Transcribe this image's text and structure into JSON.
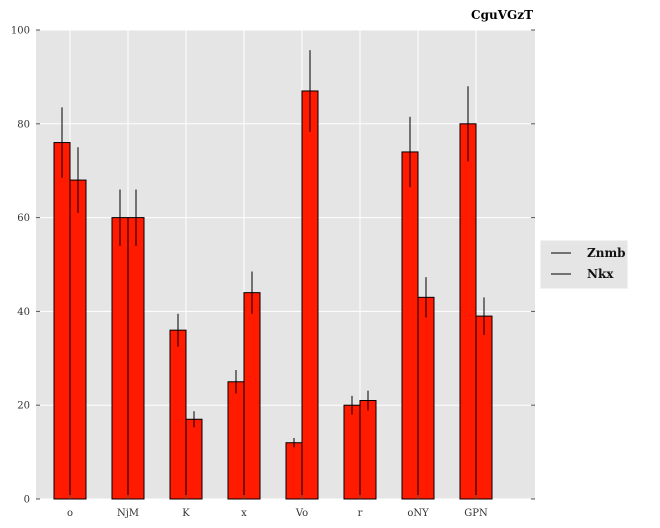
{
  "chart_data": {
    "type": "bar",
    "title": "CguVGzT",
    "xlabel": "",
    "ylabel": "",
    "categories": [
      "o",
      "NjM",
      "K",
      "x",
      "Vo",
      "r",
      "oNY",
      "GPN"
    ],
    "series": [
      {
        "name": "Znmb",
        "values": [
          76,
          60,
          36,
          25,
          12,
          20,
          74,
          80
        ],
        "errors": [
          7.5,
          6,
          3.5,
          2.5,
          1,
          2,
          7.5,
          8
        ]
      },
      {
        "name": "Nkx",
        "values": [
          68,
          60,
          17,
          44,
          87,
          21,
          43,
          39
        ],
        "errors": [
          7,
          6,
          1.7,
          4.5,
          8.7,
          2.1,
          4.3,
          4
        ]
      }
    ],
    "ylim": [
      0,
      100
    ],
    "yticks": [
      0,
      20,
      40,
      60,
      80,
      100
    ],
    "grid": true,
    "legend_position": "center-right",
    "colors": {
      "bar_fill": "#ff1a00",
      "background": "#e5e5e5",
      "grid": "#ffffff",
      "edge": "#000000"
    }
  }
}
